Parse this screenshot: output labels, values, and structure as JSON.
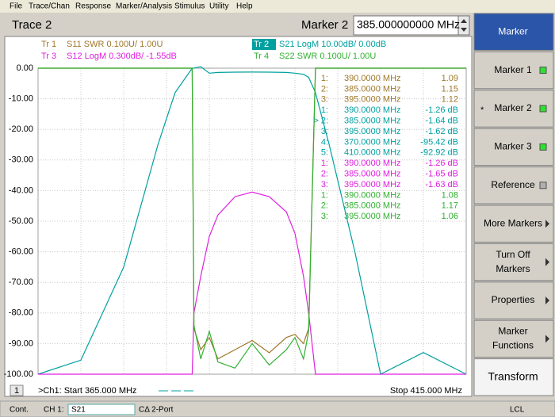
{
  "menu": [
    "File",
    "Trace/Chan",
    "Response",
    "Marker/Analysis",
    "Stimulus",
    "Utility",
    "Help"
  ],
  "title": "Trace 2",
  "marker_entry": {
    "label": "Marker 2",
    "value": "385.000000000 MHz"
  },
  "trace_labels": [
    {
      "id": "Tr 1",
      "text": "S11 SWR 0.100U/  1.00U",
      "color": "#a0782a"
    },
    {
      "id": "Tr 2",
      "text": "S21 LogM 10.00dB/  0.00dB",
      "color": "#00a0a0"
    },
    {
      "id": "Tr 3",
      "text": "S12 LogM 0.300dB/  -1.55dB",
      "color": "#e020e0"
    },
    {
      "id": "Tr 4",
      "text": "S22 SWR 0.100U/  1.00U",
      "color": "#30b030"
    }
  ],
  "marker_table": [
    {
      "n": "1:",
      "freq": "390.0000 MHz",
      "val": "1.09",
      "color": "#a0782a"
    },
    {
      "n": "2:",
      "freq": "385.0000 MHz",
      "val": "1.15",
      "color": "#a0782a"
    },
    {
      "n": "3:",
      "freq": "395.0000 MHz",
      "val": "1.12",
      "color": "#a0782a"
    },
    {
      "n": "1:",
      "freq": "390.0000 MHz",
      "val": "-1.26 dB",
      "color": "#00a0a0"
    },
    {
      "n": "> 2:",
      "freq": "385.0000 MHz",
      "val": "-1.64 dB",
      "color": "#00a0a0"
    },
    {
      "n": "3:",
      "freq": "395.0000 MHz",
      "val": "-1.62 dB",
      "color": "#00a0a0"
    },
    {
      "n": "4:",
      "freq": "370.0000 MHz",
      "val": "-95.42 dB",
      "color": "#00a0a0"
    },
    {
      "n": "5:",
      "freq": "410.0000 MHz",
      "val": "-92.92 dB",
      "color": "#00a0a0"
    },
    {
      "n": "1:",
      "freq": "390.0000 MHz",
      "val": "-1.26 dB",
      "color": "#e020e0"
    },
    {
      "n": "2:",
      "freq": "385.0000 MHz",
      "val": "-1.65 dB",
      "color": "#e020e0"
    },
    {
      "n": "3:",
      "freq": "395.0000 MHz",
      "val": "-1.63 dB",
      "color": "#e020e0"
    },
    {
      "n": "1:",
      "freq": "390.0000 MHz",
      "val": "1.08",
      "color": "#30b030"
    },
    {
      "n": "2:",
      "freq": "385.0000 MHz",
      "val": "1.17",
      "color": "#30b030"
    },
    {
      "n": "3:",
      "freq": "395.0000 MHz",
      "val": "1.06",
      "color": "#30b030"
    }
  ],
  "footer": {
    "channel": "1",
    "start": ">Ch1: Start  365.000 MHz",
    "stop": "Stop  415.000 MHz"
  },
  "status": {
    "mode": "Cont.",
    "channel": "CH 1:",
    "param": "S21",
    "cal": "CΔ 2-Port",
    "ref": "LCL"
  },
  "softkeys": [
    {
      "lines": [
        "Marker"
      ],
      "kind": "header"
    },
    {
      "lines": [
        "Marker 1"
      ],
      "kind": "led-on"
    },
    {
      "lines": [
        "Marker 2"
      ],
      "kind": "led-on",
      "prefix": "*"
    },
    {
      "lines": [
        "Marker 3"
      ],
      "kind": "led-on"
    },
    {
      "lines": [
        "Reference"
      ],
      "kind": "led-off"
    },
    {
      "lines": [
        "More Markers"
      ],
      "kind": "arrow"
    },
    {
      "lines": [
        "Turn Off",
        "Markers"
      ],
      "kind": "arrow"
    },
    {
      "lines": [
        "Properties"
      ],
      "kind": "arrow"
    },
    {
      "lines": [
        "Marker",
        "Functions"
      ],
      "kind": "arrow"
    },
    {
      "lines": [
        "Transform"
      ],
      "kind": "plain"
    }
  ],
  "chart_data": {
    "type": "line",
    "x": [
      365,
      370,
      375,
      377,
      379,
      381,
      383,
      383.2,
      384,
      385,
      386,
      388,
      390,
      392,
      394,
      395,
      396,
      396.6,
      397.4,
      399,
      402,
      405,
      410,
      415
    ],
    "xlim": [
      365,
      415
    ],
    "xticks": [
      365,
      370,
      375,
      380,
      385,
      390,
      395,
      400,
      405,
      410,
      415
    ],
    "ylim": [
      -100,
      0
    ],
    "yticks": [
      {
        "value": 0,
        "label": "0.00"
      },
      {
        "value": -10,
        "label": "-10.00"
      },
      {
        "value": -20,
        "label": "-20.00"
      },
      {
        "value": -30,
        "label": "-30.00"
      },
      {
        "value": -40,
        "label": "-40.00"
      },
      {
        "value": -50,
        "label": "-50.00"
      },
      {
        "value": -60,
        "label": "-60.00"
      },
      {
        "value": -70,
        "label": "-70.00"
      },
      {
        "value": -80,
        "label": "-80.00"
      },
      {
        "value": -90,
        "label": "-90.00"
      },
      {
        "value": -100,
        "label": "-100.00"
      }
    ],
    "grid": true,
    "series": [
      {
        "name": "S21",
        "color": "#00a0a0",
        "values": [
          -100,
          -95.42,
          -65,
          -45,
          -25,
          -8,
          0,
          0,
          0.5,
          -1.64,
          -1.4,
          -1.3,
          -1.26,
          -1.3,
          -1.4,
          -1.62,
          -2,
          -3,
          -8,
          -25,
          -60,
          -100,
          -92.92,
          -100
        ]
      },
      {
        "name": "S12",
        "color": "#e020e0",
        "values": [
          -100,
          -100,
          -100,
          -100,
          -100,
          -100,
          -100,
          -80,
          -68,
          -55,
          -48,
          -42,
          -40.5,
          -42,
          -47,
          -54,
          -68,
          -80,
          -100,
          -100,
          -100,
          -100,
          -100,
          -100
        ]
      },
      {
        "name": "S11",
        "color": "#a0782a",
        "values": [
          0,
          0,
          0,
          0,
          0,
          0,
          0,
          -85,
          -92,
          -88,
          -95,
          -92,
          -89,
          -93,
          -88,
          -87,
          -90,
          -85,
          0,
          0,
          0,
          0,
          0,
          0
        ]
      },
      {
        "name": "S22",
        "color": "#30b030",
        "values": [
          0,
          0,
          0,
          0,
          0,
          0,
          0,
          -84,
          -95,
          -86,
          -96,
          -98,
          -90,
          -97,
          -92,
          -88,
          -95,
          -86,
          0,
          0,
          0,
          0,
          0,
          0
        ]
      }
    ]
  }
}
